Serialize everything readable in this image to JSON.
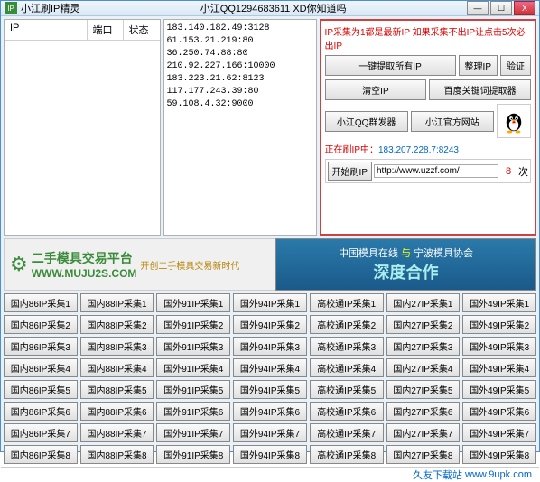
{
  "titlebar": {
    "icon_text": "IP",
    "title": "小江刷IP精灵",
    "subtitle": "小江QQ1294683611    XD你知道吗"
  },
  "winctrl": {
    "min": "—",
    "max": "☐",
    "close": "X"
  },
  "left_panel": {
    "cols": [
      "IP",
      "端口",
      "状态"
    ]
  },
  "ip_list": [
    "183.140.182.49:3128",
    "61.153.21.219:80",
    "36.250.74.88:80",
    "210.92.227.166:10000",
    "183.223.21.62:8123",
    "117.177.243.39:80",
    "59.108.4.32:9000"
  ],
  "right": {
    "warning": "IP采集为1都是最新IP 如果采集不出IP让点击5次必出IP",
    "row1": [
      "一键提取所有IP",
      "整理IP",
      "验证"
    ],
    "row2": [
      "清空IP",
      "百度关键词提取器"
    ],
    "row3": [
      "小江QQ群发器",
      "小江官方网站"
    ],
    "status_label": "正在刷IP中：",
    "status_ip": "183.207.228.7:8243",
    "start_btn": "开始刷IP",
    "url": "http://www.uzzf.com/",
    "count": "8",
    "suffix": "次"
  },
  "banner1": {
    "gear": "⚙",
    "title": "二手模具交易平台",
    "url": "WWW.MUJU2S.COM",
    "tag": "开创二手模具交易新时代"
  },
  "banner2": {
    "line1a": "中国模具在线",
    "amp": "与",
    "line1b": "宁波模具协会",
    "line2": "深度合作"
  },
  "grid_prefixes": [
    "国内86IP采集",
    "国内88IP采集",
    "国外91IP采集",
    "国外94IP采集",
    "高校通IP采集",
    "国内27IP采集",
    "国外49IP采集"
  ],
  "grid_rows": 8,
  "footer": {
    "label": "久友下载站",
    "url": "www.9upk.com"
  },
  "colors": {
    "window_border": "#4a8fd4",
    "red_border": "#d04040",
    "red_text": "#d00000",
    "link": "#0066cc",
    "green": "#3a8c3a"
  }
}
